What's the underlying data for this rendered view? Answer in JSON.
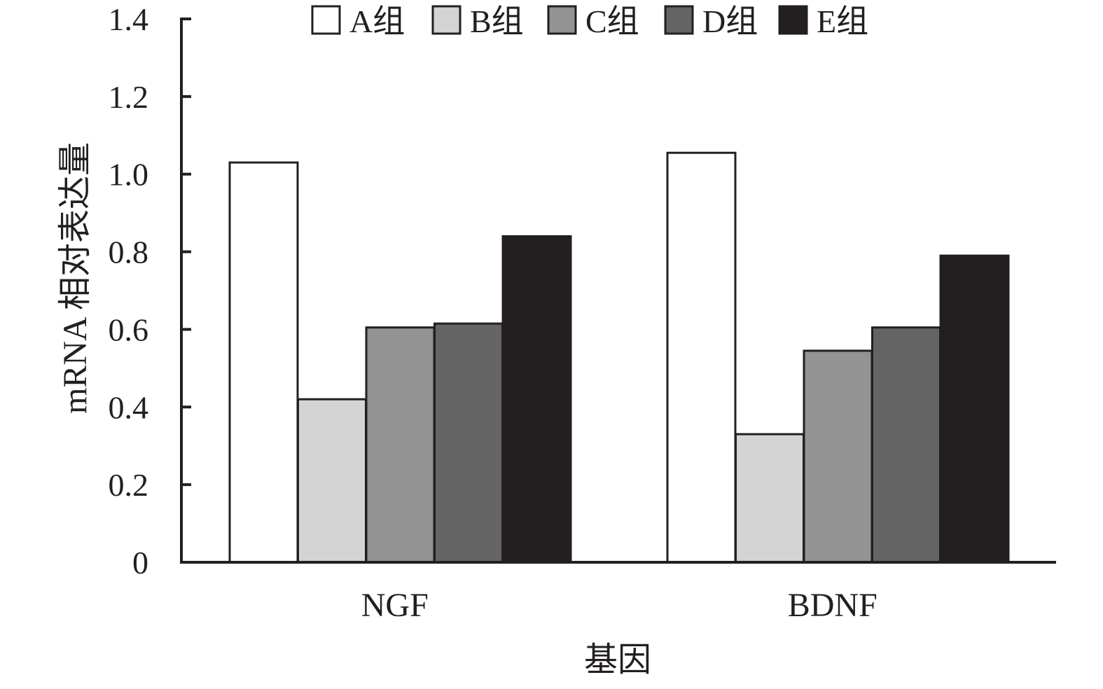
{
  "chart_data": {
    "type": "bar",
    "title": "",
    "xlabel": "基因",
    "ylabel": "mRNA 相对表达量",
    "ylim": [
      0,
      1.4
    ],
    "yticks": [
      "0",
      "0.2",
      "0.4",
      "0.6",
      "0.8",
      "1.0",
      "1.2",
      "1.4"
    ],
    "categories": [
      "NGF",
      "BDNF"
    ],
    "legend_position": "top",
    "grid": false,
    "series": [
      {
        "name": "A组",
        "color": "#ffffff",
        "values": [
          1.03,
          1.055
        ]
      },
      {
        "name": "B组",
        "color": "#d4d4d4",
        "values": [
          0.42,
          0.33
        ]
      },
      {
        "name": "C组",
        "color": "#939393",
        "values": [
          0.605,
          0.545
        ]
      },
      {
        "name": "D组",
        "color": "#656465",
        "values": [
          0.615,
          0.605
        ]
      },
      {
        "name": "E组",
        "color": "#231f20",
        "values": [
          0.84,
          0.79
        ]
      }
    ]
  }
}
